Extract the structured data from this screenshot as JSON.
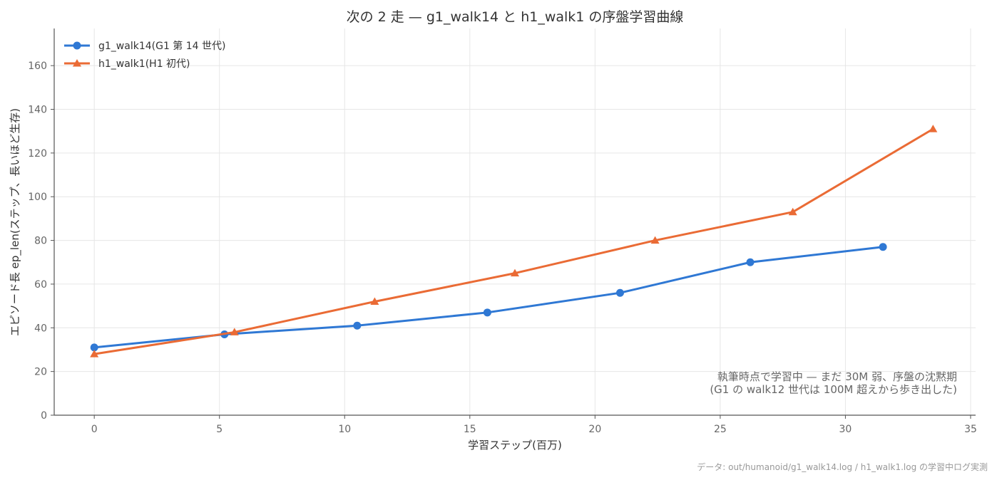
{
  "chart_data": {
    "type": "line",
    "title": "次の 2 走 — g1_walk14 と h1_walk1 の序盤学習曲線",
    "xlabel": "学習ステップ(百万)",
    "ylabel": "エピソード長 ep_len(ステップ、長いほど生存)",
    "xlim": [
      -1.6,
      35.2
    ],
    "ylim": [
      0,
      177
    ],
    "xticks": [
      0,
      5,
      10,
      15,
      20,
      25,
      30,
      35
    ],
    "yticks": [
      0,
      20,
      40,
      60,
      80,
      100,
      120,
      140,
      160
    ],
    "grid": true,
    "legend_position": "top-left",
    "series": [
      {
        "name": "g1_walk14(G1 第 14 世代)",
        "color": "#2f78d4",
        "marker": "circle",
        "x": [
          0,
          5.2,
          10.5,
          15.7,
          21.0,
          26.2,
          31.5
        ],
        "y": [
          31,
          37,
          41,
          47,
          56,
          70,
          77
        ]
      },
      {
        "name": "h1_walk1(H1 初代)",
        "color": "#ea6b35",
        "marker": "triangle",
        "x": [
          0,
          5.6,
          11.2,
          16.8,
          22.4,
          27.9,
          33.5
        ],
        "y": [
          28,
          38,
          52,
          65,
          80,
          93,
          131
        ]
      }
    ],
    "annotation": {
      "line1": "執筆時点で学習中 — まだ 30M 弱、序盤の沈黙期",
      "line2": "(G1 の walk12 世代は 100M 超えから歩き出した)"
    },
    "source": "データ: out/humanoid/g1_walk14.log / h1_walk1.log の学習中ログ実測"
  }
}
